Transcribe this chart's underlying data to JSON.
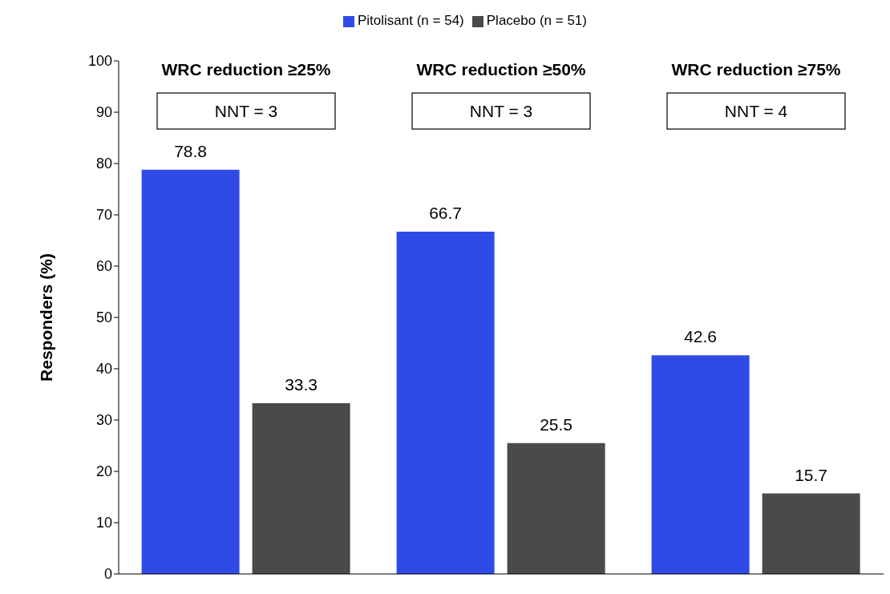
{
  "chart_data": {
    "type": "bar",
    "ylabel": "Responders (%)",
    "categories": [
      "WRC reduction ≥25%",
      "WRC reduction ≥50%",
      "WRC reduction ≥75%"
    ],
    "series": [
      {
        "name": "Pitolisant (n = 54)",
        "color": "#2f4be6",
        "values": [
          78.8,
          66.7,
          42.6
        ]
      },
      {
        "name": "Placebo (n = 51)",
        "color": "#4a4a4c",
        "values": [
          33.3,
          25.5,
          15.7
        ]
      }
    ],
    "annotations": [
      "NNT = 3",
      "NNT = 3",
      "NNT = 4"
    ],
    "ylim": [
      0,
      100
    ],
    "yticks": [
      0,
      10,
      20,
      30,
      40,
      50,
      60,
      70,
      80,
      90,
      100
    ],
    "grid": false,
    "legend": "top",
    "data_labels": true
  }
}
